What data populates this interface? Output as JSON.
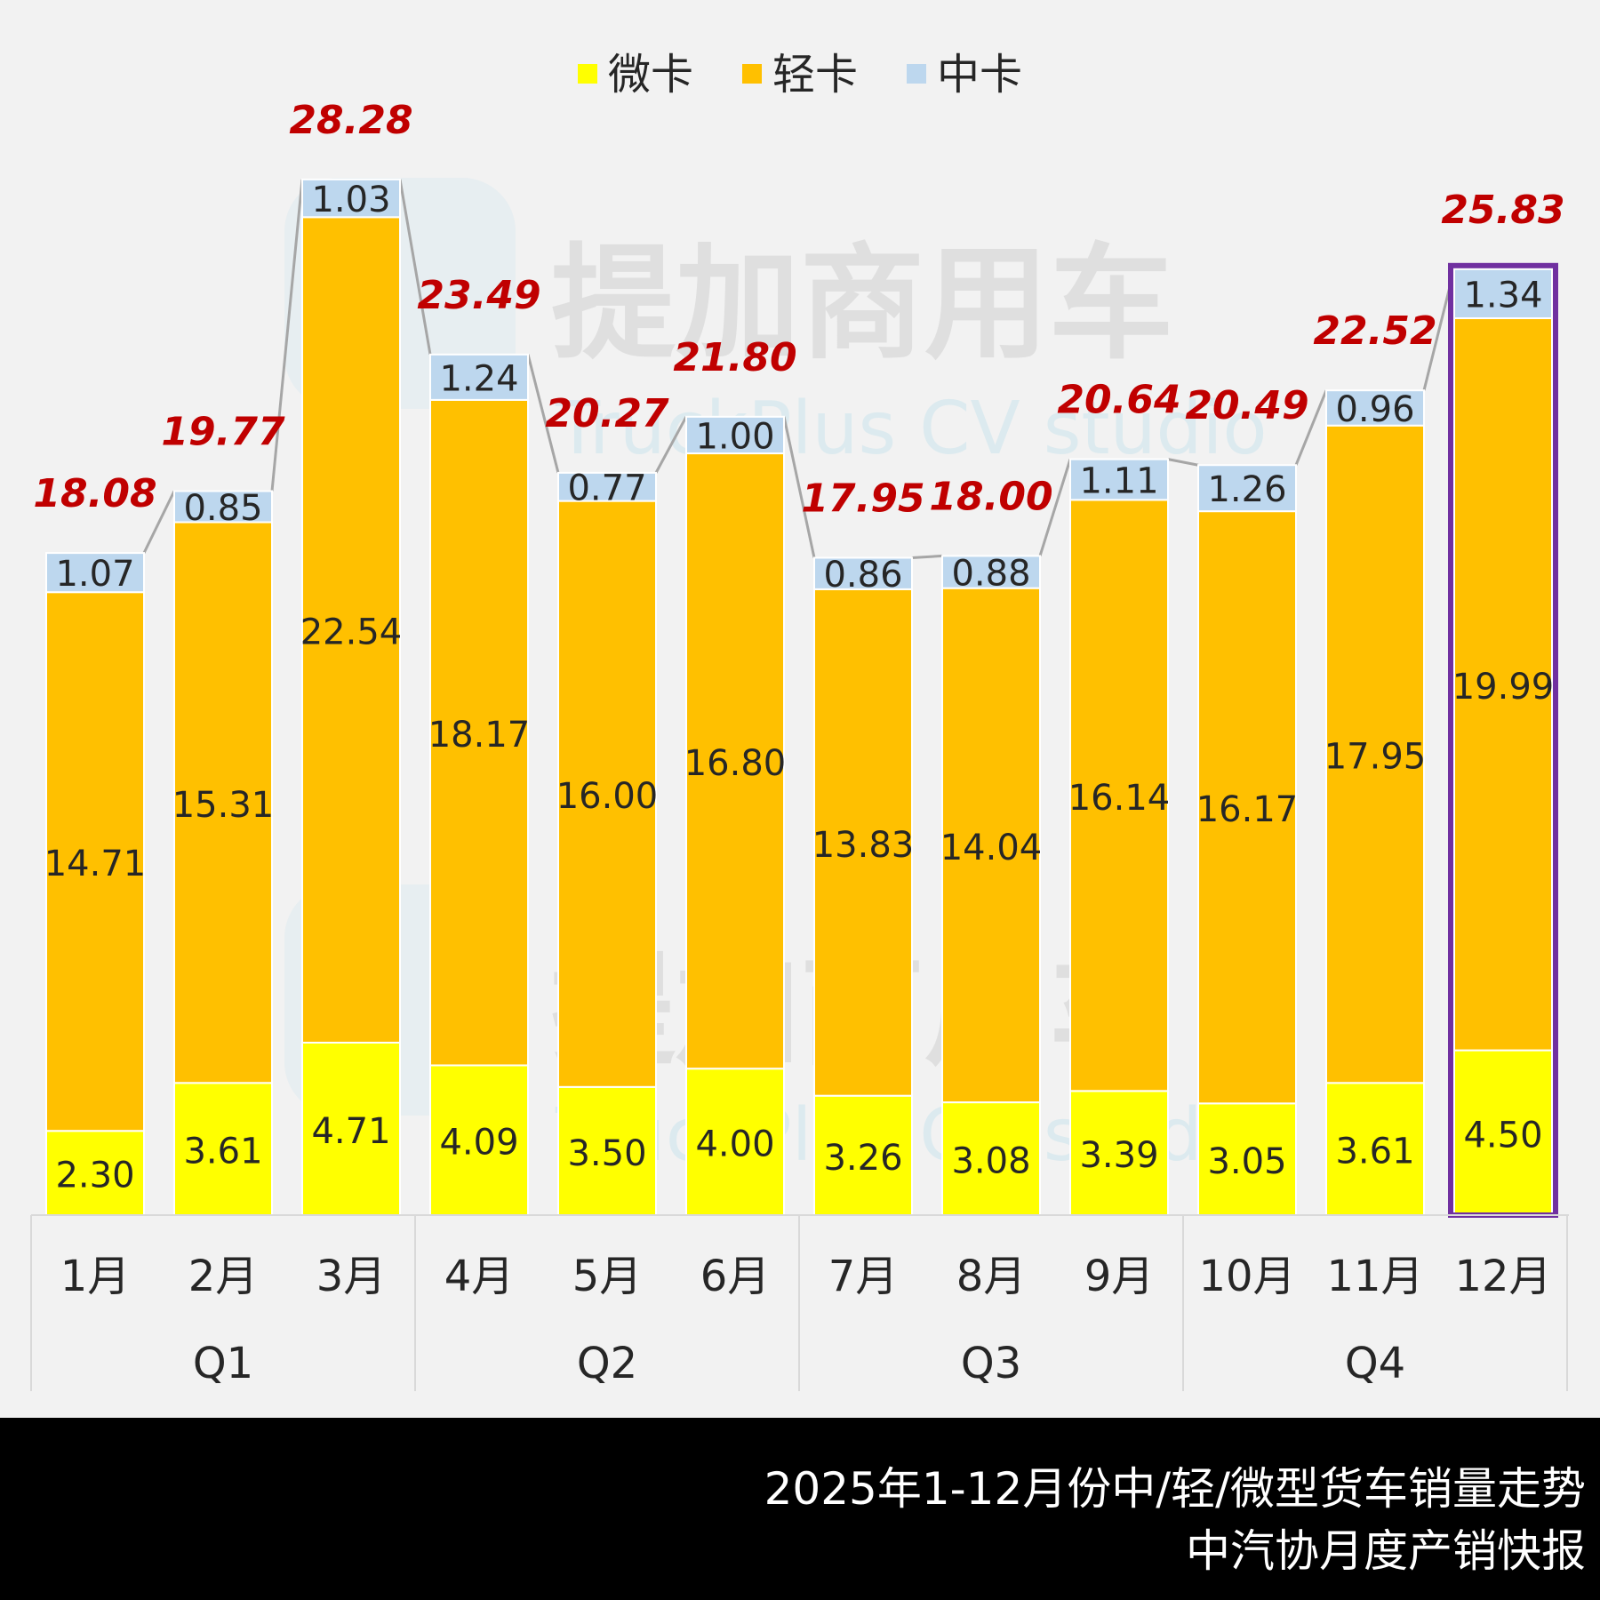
{
  "chart_data": {
    "type": "bar",
    "stacked": true,
    "categories": [
      "1月",
      "2月",
      "3月",
      "4月",
      "5月",
      "6月",
      "7月",
      "8月",
      "9月",
      "10月",
      "11月",
      "12月"
    ],
    "groups": [
      {
        "label": "Q1",
        "categories": [
          "1月",
          "2月",
          "3月"
        ]
      },
      {
        "label": "Q2",
        "categories": [
          "4月",
          "5月",
          "6月"
        ]
      },
      {
        "label": "Q3",
        "categories": [
          "7月",
          "8月",
          "9月"
        ]
      },
      {
        "label": "Q4",
        "categories": [
          "10月",
          "11月",
          "12月"
        ]
      }
    ],
    "series": [
      {
        "name": "微卡",
        "color": "#ffff00",
        "values": [
          2.3,
          3.61,
          4.71,
          4.09,
          3.5,
          4.0,
          3.26,
          3.08,
          3.39,
          3.05,
          3.61,
          4.5
        ]
      },
      {
        "name": "轻卡",
        "color": "#ffc000",
        "values": [
          14.71,
          15.31,
          22.54,
          18.17,
          16.0,
          16.8,
          13.83,
          14.04,
          16.14,
          16.17,
          17.95,
          19.99
        ]
      },
      {
        "name": "中卡",
        "color": "#bdd7ee",
        "values": [
          1.07,
          0.85,
          1.03,
          1.24,
          0.77,
          1.0,
          0.86,
          0.88,
          1.11,
          1.26,
          0.96,
          1.34
        ]
      }
    ],
    "totals": [
      18.08,
      19.77,
      28.28,
      23.49,
      20.27,
      21.8,
      17.95,
      18.0,
      20.64,
      20.49,
      22.52,
      25.83
    ],
    "highlight_category": "12月",
    "highlight_color": "#7030a0",
    "total_label_color": "#c00000",
    "connector_color": "#a6a6a6",
    "legend_position": "top-center",
    "ylim": [
      0,
      28.28
    ],
    "grid": false
  },
  "watermark": {
    "brand": "提加商用车",
    "sub": "TruckPlus CV studio"
  },
  "footer": {
    "line1": "2025年1-12月份中/轻/微型货车销量走势",
    "line2": "中汽协月度产销快报"
  }
}
